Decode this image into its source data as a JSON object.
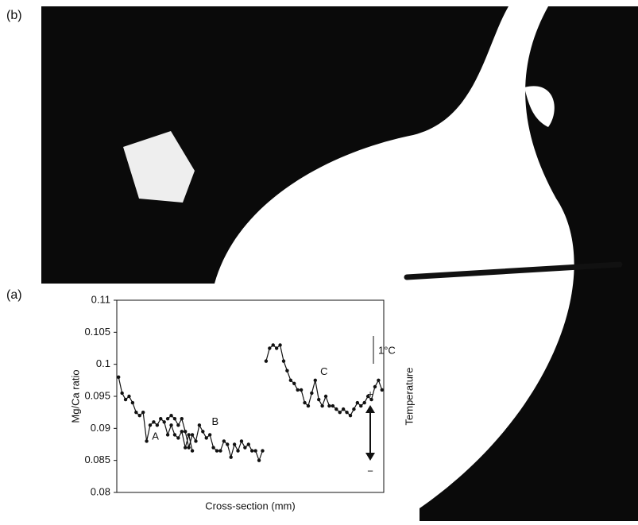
{
  "panel_b_label": "(b)",
  "chart_data": {
    "type": "line",
    "panel_label": "(a)",
    "y_label": "Mg/Ca ratio",
    "x_label": "Cross-section (mm)",
    "categories": [
      null,
      null,
      null,
      null,
      null,
      null,
      null,
      null,
      null,
      null,
      null,
      null,
      null,
      null,
      null,
      null,
      null,
      null,
      null,
      null,
      null,
      null,
      null,
      null,
      null,
      null,
      null,
      null,
      null,
      null,
      null,
      null,
      null,
      null,
      null,
      null,
      null,
      null,
      null,
      null,
      null,
      null,
      null,
      null,
      null,
      null,
      null,
      null,
      null,
      null,
      null,
      null,
      null,
      null,
      null,
      null,
      null,
      null,
      null,
      null,
      null,
      null,
      null,
      null,
      null,
      null,
      null,
      null,
      null,
      null,
      null,
      null,
      null,
      null,
      null,
      null
    ],
    "series": [
      {
        "name": "A",
        "color": "#111111",
        "values": [
          0.098,
          0.0955,
          0.0945,
          0.095,
          0.094,
          0.0925,
          0.092,
          0.0925,
          0.088,
          0.0905,
          0.091,
          0.0905,
          0.0915,
          0.091,
          0.089,
          0.0905,
          0.089,
          0.0885,
          0.0895,
          0.087,
          0.089,
          0.0865,
          null,
          null,
          null,
          null,
          null,
          null,
          null,
          null,
          null,
          null,
          null,
          null,
          null,
          null,
          null,
          null,
          null,
          null,
          null,
          null,
          null,
          null,
          null,
          null,
          null,
          null,
          null,
          null,
          null,
          null,
          null,
          null,
          null,
          null,
          null,
          null,
          null,
          null,
          null,
          null,
          null,
          null,
          null,
          null,
          null,
          null,
          null,
          null,
          null,
          null,
          null,
          null,
          null,
          null
        ]
      },
      {
        "name": "B",
        "color": "#111111",
        "values": [
          null,
          null,
          null,
          null,
          null,
          null,
          null,
          null,
          null,
          null,
          null,
          null,
          null,
          null,
          0.0915,
          0.092,
          0.0915,
          0.0905,
          0.0915,
          0.0895,
          0.087,
          0.089,
          0.088,
          0.0905,
          0.0895,
          0.0885,
          0.089,
          0.087,
          0.0865,
          0.0865,
          0.088,
          0.0875,
          0.0855,
          0.0875,
          0.0865,
          0.088,
          0.087,
          0.0875,
          0.0865,
          0.0865,
          0.085,
          0.0865,
          null,
          null,
          null,
          null,
          null,
          null,
          null,
          null,
          null,
          null,
          null,
          null,
          null,
          null,
          null,
          null,
          null,
          null,
          null,
          null,
          null,
          null,
          null,
          null,
          null,
          null,
          null,
          null,
          null,
          null,
          null,
          null,
          null,
          null
        ]
      },
      {
        "name": "C",
        "color": "#111111",
        "values": [
          null,
          null,
          null,
          null,
          null,
          null,
          null,
          null,
          null,
          null,
          null,
          null,
          null,
          null,
          null,
          null,
          null,
          null,
          null,
          null,
          null,
          null,
          null,
          null,
          null,
          null,
          null,
          null,
          null,
          null,
          null,
          null,
          null,
          null,
          null,
          null,
          null,
          null,
          null,
          null,
          null,
          null,
          0.1005,
          0.1025,
          0.103,
          0.1025,
          0.103,
          0.1005,
          0.099,
          0.0975,
          0.097,
          0.096,
          0.096,
          0.094,
          0.0935,
          0.0955,
          0.0975,
          0.0945,
          0.0935,
          0.095,
          0.0935,
          0.0935,
          0.093,
          0.0925,
          0.093,
          0.0925,
          0.092,
          0.093,
          0.094,
          0.0935,
          0.094,
          0.095,
          0.0945,
          0.0965,
          0.0975,
          0.096
        ]
      }
    ],
    "ylim": [
      0.08,
      0.11
    ],
    "yticks": [
      0.08,
      0.085,
      0.09,
      0.095,
      0.1,
      0.105,
      0.11
    ],
    "scale_label": "1°C",
    "right_label": "Temperature",
    "plus_label": "+",
    "minus_label": "−"
  }
}
